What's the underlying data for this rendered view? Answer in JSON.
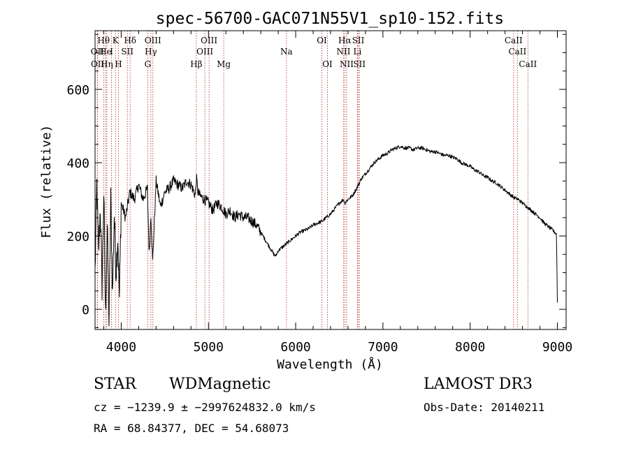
{
  "chart_data": {
    "type": "line",
    "title": "spec-56700-GAC071N55V1_sp10-152.fits",
    "xlabel": "Wavelength (Å)",
    "ylabel": "Flux (relative)",
    "xlim": [
      3700,
      9100
    ],
    "ylim": [
      -55,
      760
    ],
    "x_ticks": [
      4000,
      5000,
      6000,
      7000,
      8000,
      9000
    ],
    "y_ticks": [
      0,
      200,
      400,
      600
    ],
    "series": [
      {
        "name": "flux",
        "color": "#000000",
        "x": [
          3700,
          3720,
          3740,
          3760,
          3780,
          3800,
          3820,
          3840,
          3860,
          3880,
          3900,
          3920,
          3940,
          3960,
          3980,
          4000,
          4050,
          4100,
          4150,
          4200,
          4250,
          4300,
          4320,
          4340,
          4360,
          4400,
          4450,
          4500,
          4550,
          4600,
          4650,
          4700,
          4750,
          4800,
          4850,
          4861,
          4880,
          4900,
          4950,
          5000,
          5050,
          5100,
          5150,
          5200,
          5250,
          5300,
          5350,
          5400,
          5450,
          5500,
          5550,
          5600,
          5650,
          5700,
          5750,
          5770,
          5800,
          5850,
          5900,
          5950,
          6000,
          6050,
          6100,
          6150,
          6200,
          6250,
          6300,
          6350,
          6400,
          6450,
          6500,
          6550,
          6563,
          6600,
          6650,
          6700,
          6750,
          6800,
          6850,
          6900,
          6950,
          7000,
          7050,
          7100,
          7150,
          7200,
          7250,
          7300,
          7350,
          7400,
          7450,
          7500,
          7550,
          7600,
          7650,
          7700,
          7750,
          7800,
          7850,
          7900,
          7950,
          8000,
          8050,
          8100,
          8150,
          8200,
          8250,
          8300,
          8350,
          8400,
          8450,
          8500,
          8550,
          8600,
          8650,
          8700,
          8750,
          8800,
          8850,
          8900,
          8950,
          8990,
          9000
        ],
        "values": [
          100,
          340,
          150,
          280,
          60,
          320,
          -20,
          230,
          -40,
          300,
          40,
          260,
          100,
          200,
          30,
          290,
          250,
          320,
          300,
          340,
          300,
          330,
          150,
          260,
          130,
          350,
          280,
          320,
          330,
          350,
          340,
          330,
          350,
          340,
          310,
          360,
          320,
          310,
          300,
          290,
          270,
          290,
          280,
          260,
          270,
          250,
          260,
          250,
          250,
          240,
          230,
          210,
          190,
          170,
          150,
          145,
          160,
          170,
          180,
          190,
          200,
          210,
          215,
          220,
          230,
          235,
          240,
          250,
          260,
          275,
          290,
          300,
          290,
          300,
          310,
          330,
          355,
          370,
          385,
          400,
          410,
          420,
          425,
          435,
          440,
          445,
          440,
          440,
          435,
          440,
          440,
          435,
          430,
          430,
          425,
          420,
          420,
          415,
          410,
          400,
          395,
          390,
          380,
          375,
          365,
          360,
          350,
          345,
          335,
          325,
          315,
          305,
          300,
          290,
          280,
          270,
          260,
          250,
          235,
          225,
          215,
          205,
          20
        ]
      }
    ],
    "spectral_lines": [
      {
        "label": "Hθ",
        "wavelength": 3798,
        "row": 1
      },
      {
        "label": "OII",
        "wavelength": 3727,
        "row": 2
      },
      {
        "label": "OII",
        "wavelength": 3729,
        "row": 3
      },
      {
        "label": "He",
        "wavelength": 3820,
        "row": 2
      },
      {
        "label": "Hη",
        "wavelength": 3835,
        "row": 3
      },
      {
        "label": "K",
        "wavelength": 3934,
        "row": 1
      },
      {
        "label": "I",
        "wavelength": 3889,
        "row": 2
      },
      {
        "label": "H",
        "wavelength": 3968,
        "row": 3
      },
      {
        "label": "SII",
        "wavelength": 4070,
        "row": 2
      },
      {
        "label": "Hδ",
        "wavelength": 4102,
        "row": 1
      },
      {
        "label": "OIII",
        "wavelength": 4363,
        "row": 1
      },
      {
        "label": "Hγ",
        "wavelength": 4340,
        "row": 2
      },
      {
        "label": "G",
        "wavelength": 4304,
        "row": 3
      },
      {
        "label": "Hβ",
        "wavelength": 4861,
        "row": 3
      },
      {
        "label": "OIII",
        "wavelength": 5007,
        "row": 1
      },
      {
        "label": "OIII",
        "wavelength": 4959,
        "row": 2
      },
      {
        "label": "Mg",
        "wavelength": 5175,
        "row": 3
      },
      {
        "label": "Na",
        "wavelength": 5894,
        "row": 2
      },
      {
        "label": "OI",
        "wavelength": 6300,
        "row": 1
      },
      {
        "label": "OI",
        "wavelength": 6364,
        "row": 3
      },
      {
        "label": "Hα",
        "wavelength": 6563,
        "row": 1
      },
      {
        "label": "NII",
        "wavelength": 6548,
        "row": 2
      },
      {
        "label": "NII",
        "wavelength": 6584,
        "row": 3
      },
      {
        "label": "SII",
        "wavelength": 6717,
        "row": 1
      },
      {
        "label": "Li",
        "wavelength": 6708,
        "row": 2
      },
      {
        "label": "SII",
        "wavelength": 6731,
        "row": 3
      },
      {
        "label": "CaII",
        "wavelength": 8498,
        "row": 1
      },
      {
        "label": "CaII",
        "wavelength": 8542,
        "row": 2
      },
      {
        "label": "CaII",
        "wavelength": 8662,
        "row": 3
      }
    ],
    "line_color": "#b22222",
    "axis_color": "#000000"
  },
  "info": {
    "class_label": "STAR",
    "subclass": "WDMagnetic",
    "survey": "LAMOST DR3",
    "redshift_line": "cz = −1239.9 ± −2997624832.0 km/s",
    "obs_date": "Obs-Date: 20140211",
    "coords_line": "RA =  68.84377, DEC =  54.68073"
  }
}
